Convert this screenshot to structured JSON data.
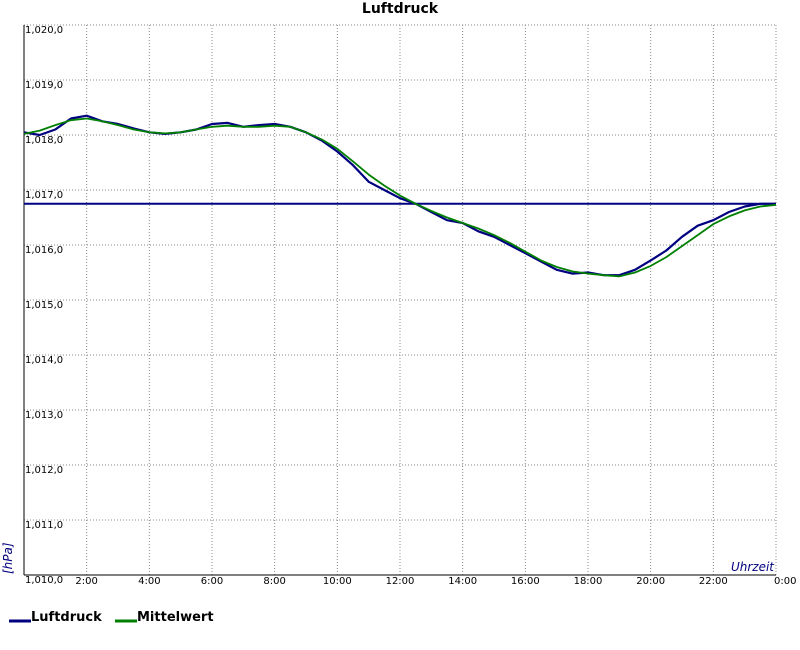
{
  "chart_data": {
    "type": "line",
    "title": "Luftdruck",
    "xlabel": "Uhrzeit",
    "ylabel": "[hPa]",
    "x_unit": "hours",
    "xlim": [
      0,
      24
    ],
    "ylim": [
      1010,
      1020
    ],
    "x_tick_values": [
      2,
      4,
      6,
      8,
      10,
      12,
      14,
      16,
      18,
      20,
      22,
      24
    ],
    "x_tick_labels": [
      "2:00",
      "4:00",
      "6:00",
      "8:00",
      "10:00",
      "12:00",
      "14:00",
      "16:00",
      "18:00",
      "20:00",
      "22:00",
      "0:00"
    ],
    "y_tick_values": [
      1010,
      1011,
      1012,
      1013,
      1014,
      1015,
      1016,
      1017,
      1018,
      1019,
      1020
    ],
    "y_tick_labels": [
      "1,010,0",
      "1,011,0",
      "1,012,0",
      "1,013,0",
      "1,014,0",
      "1,015,0",
      "1,016,0",
      "1,017,0",
      "1,018,0",
      "1,019,0",
      "1,020,0"
    ],
    "grid": true,
    "legend_position": "bottom-left",
    "reference_line": {
      "y": 1016.75,
      "color": "#000080"
    },
    "series": [
      {
        "name": "Luftdruck",
        "color": "#000080",
        "x": [
          0,
          0.5,
          1,
          1.5,
          2,
          2.5,
          3,
          3.5,
          4,
          4.5,
          5,
          5.5,
          6,
          6.5,
          7,
          7.5,
          8,
          8.5,
          9,
          9.5,
          10,
          10.5,
          11,
          11.5,
          12,
          12.5,
          13,
          13.5,
          14,
          14.5,
          15,
          15.5,
          16,
          16.5,
          17,
          17.5,
          18,
          18.5,
          19,
          19.5,
          20,
          20.5,
          21,
          21.5,
          22,
          22.5,
          23,
          23.5,
          24
        ],
        "y": [
          1018.05,
          1018.0,
          1018.1,
          1018.3,
          1018.35,
          1018.25,
          1018.2,
          1018.12,
          1018.05,
          1018.02,
          1018.05,
          1018.1,
          1018.2,
          1018.22,
          1018.15,
          1018.18,
          1018.2,
          1018.15,
          1018.05,
          1017.9,
          1017.7,
          1017.45,
          1017.15,
          1017.0,
          1016.85,
          1016.75,
          1016.6,
          1016.45,
          1016.4,
          1016.25,
          1016.15,
          1016.0,
          1015.85,
          1015.7,
          1015.55,
          1015.48,
          1015.5,
          1015.45,
          1015.45,
          1015.55,
          1015.72,
          1015.9,
          1016.15,
          1016.35,
          1016.45,
          1016.6,
          1016.7,
          1016.75,
          1016.75
        ]
      },
      {
        "name": "Mittelwert",
        "color": "#008000",
        "x": [
          0,
          0.5,
          1,
          1.5,
          2,
          2.5,
          3,
          3.5,
          4,
          4.5,
          5,
          5.5,
          6,
          6.5,
          7,
          7.5,
          8,
          8.5,
          9,
          9.5,
          10,
          10.5,
          11,
          11.5,
          12,
          12.5,
          13,
          13.5,
          14,
          14.5,
          15,
          15.5,
          16,
          16.5,
          17,
          17.5,
          18,
          18.5,
          19,
          19.5,
          20,
          20.5,
          21,
          21.5,
          22,
          22.5,
          23,
          23.5,
          24
        ],
        "y": [
          1018.02,
          1018.08,
          1018.18,
          1018.27,
          1018.3,
          1018.25,
          1018.18,
          1018.1,
          1018.05,
          1018.03,
          1018.05,
          1018.1,
          1018.15,
          1018.17,
          1018.15,
          1018.15,
          1018.17,
          1018.15,
          1018.05,
          1017.92,
          1017.75,
          1017.52,
          1017.28,
          1017.08,
          1016.9,
          1016.75,
          1016.62,
          1016.5,
          1016.4,
          1016.3,
          1016.18,
          1016.04,
          1015.88,
          1015.72,
          1015.6,
          1015.52,
          1015.48,
          1015.45,
          1015.43,
          1015.5,
          1015.62,
          1015.78,
          1015.98,
          1016.18,
          1016.38,
          1016.52,
          1016.63,
          1016.7,
          1016.73
        ]
      }
    ]
  }
}
